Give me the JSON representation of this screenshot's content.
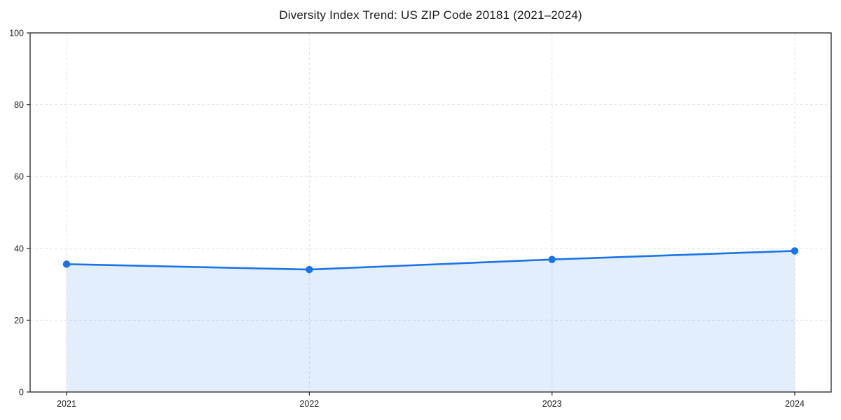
{
  "chart_data": {
    "type": "area",
    "title": "Diversity Index Trend: US ZIP Code 20181 (2021–2024)",
    "categories": [
      "2021",
      "2022",
      "2023",
      "2024"
    ],
    "series": [
      {
        "name": "Diversity Index",
        "values": [
          35.6,
          34.1,
          36.9,
          39.3
        ]
      }
    ],
    "xlabel": "",
    "ylabel": "",
    "ylim": [
      0,
      100
    ],
    "y_ticks": [
      0,
      20,
      40,
      60,
      80,
      100
    ],
    "grid": {
      "visible": true,
      "style": "dashed",
      "axes": "both"
    },
    "legend": {
      "visible": false
    },
    "marker": "circle",
    "colors": {
      "line": "#1a73e8",
      "marker": "#1a73e8",
      "fill": "rgba(26,115,232,0.12)",
      "grid": "#e3e3e3",
      "spine": "#222222",
      "tick_label": "#1f1f1f",
      "background": "#ffffff"
    }
  }
}
